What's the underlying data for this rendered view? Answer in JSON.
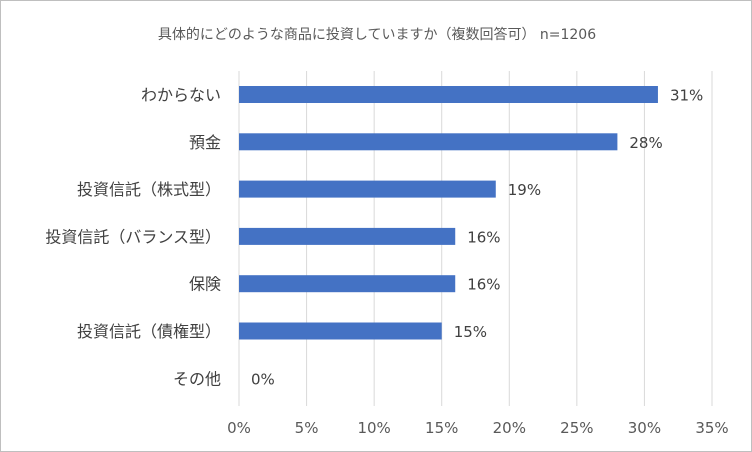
{
  "chart_data": {
    "type": "bar",
    "orientation": "horizontal",
    "title": "具体的にどのような商品に投資していますか（複数回答可） n=1206",
    "categories": [
      "わからない",
      "預金",
      "投資信託（株式型）",
      "投資信託（バランス型）",
      "保険",
      "投資信託（債権型）",
      "その他"
    ],
    "values": [
      31,
      28,
      19,
      16,
      16,
      15,
      0
    ],
    "data_labels": [
      "31%",
      "28%",
      "19%",
      "16%",
      "16%",
      "15%",
      "0%"
    ],
    "xlim": [
      0,
      35
    ],
    "xticks": [
      0,
      5,
      10,
      15,
      20,
      25,
      30,
      35
    ],
    "xtick_labels": [
      "0%",
      "5%",
      "10%",
      "15%",
      "20%",
      "25%",
      "30%",
      "35%"
    ],
    "xlabel": "",
    "ylabel": "",
    "grid": "vertical",
    "legend": "none",
    "bar_color": "#4472c4"
  }
}
